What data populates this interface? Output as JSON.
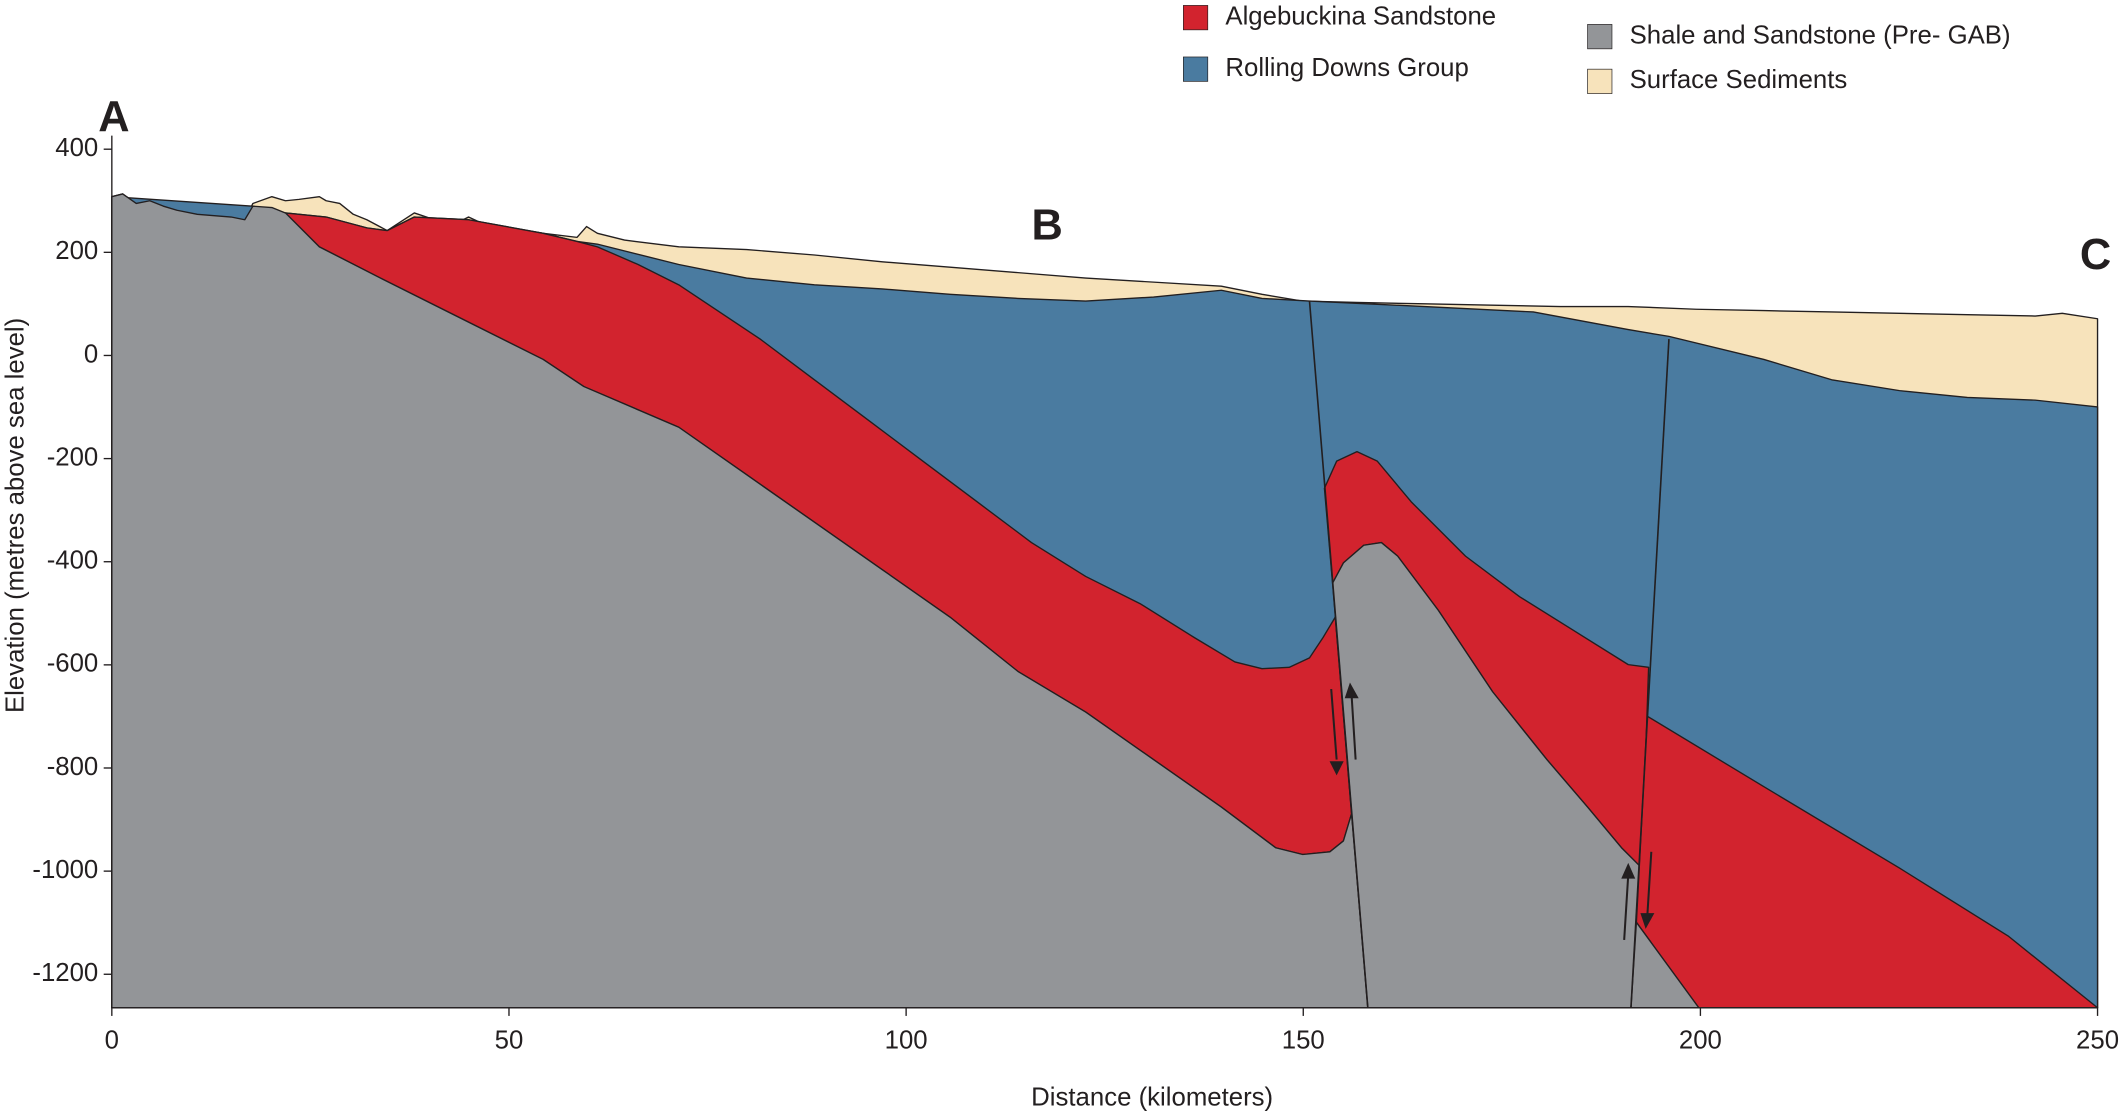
{
  "chart_data": {
    "type": "cross-section",
    "xlabel": "Distance (kilometers)",
    "ylabel": "Elevation (metres above sea level)",
    "xlim": [
      0,
      250
    ],
    "xticks": [
      0,
      50,
      100,
      150,
      200,
      250
    ],
    "ylim": [
      -1265,
      400
    ],
    "yticks": [
      400,
      200,
      0,
      -200,
      -400,
      -600,
      -800,
      -1000,
      -1200
    ],
    "legend": [
      {
        "name": "Algebuckina  Sandstone",
        "color": "#d2232e"
      },
      {
        "name": "Rolling Downs Group",
        "color": "#4a7ba0"
      },
      {
        "name": "Shale and Sandstone (Pre- GAB)",
        "color": "#939598"
      },
      {
        "name": "Surface Sediments",
        "color": "#f7e3bb"
      }
    ],
    "annotations": [
      "A",
      "B",
      "C"
    ]
  }
}
